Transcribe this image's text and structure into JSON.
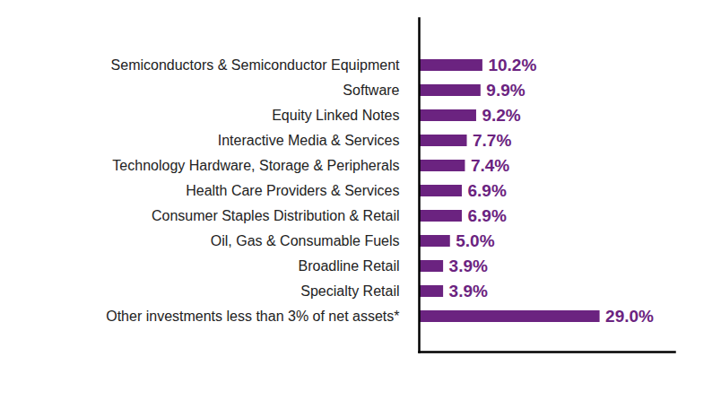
{
  "chart_data": {
    "type": "bar",
    "orientation": "horizontal",
    "categories": [
      "Semiconductors & Semiconductor Equipment",
      "Software",
      "Equity Linked Notes",
      "Interactive Media & Services",
      "Technology Hardware, Storage & Peripherals",
      "Health Care Providers & Services",
      "Consumer Staples Distribution & Retail",
      "Oil, Gas & Consumable Fuels",
      "Broadline Retail",
      "Specialty Retail",
      "Other investments less than 3% of net assets*"
    ],
    "values": [
      10.2,
      9.9,
      9.2,
      7.7,
      7.4,
      6.9,
      6.9,
      5.0,
      3.9,
      3.9,
      29.0
    ],
    "value_labels": [
      "10.2%",
      "9.9%",
      "9.2%",
      "7.7%",
      "7.4%",
      "6.9%",
      "6.9%",
      "5.0%",
      "3.9%",
      "3.9%",
      "29.0%"
    ],
    "color": "#6b2380",
    "xlim": [
      0,
      41
    ],
    "xticks": [],
    "data_labels": true,
    "tick_labels": "y",
    "grid": false
  }
}
